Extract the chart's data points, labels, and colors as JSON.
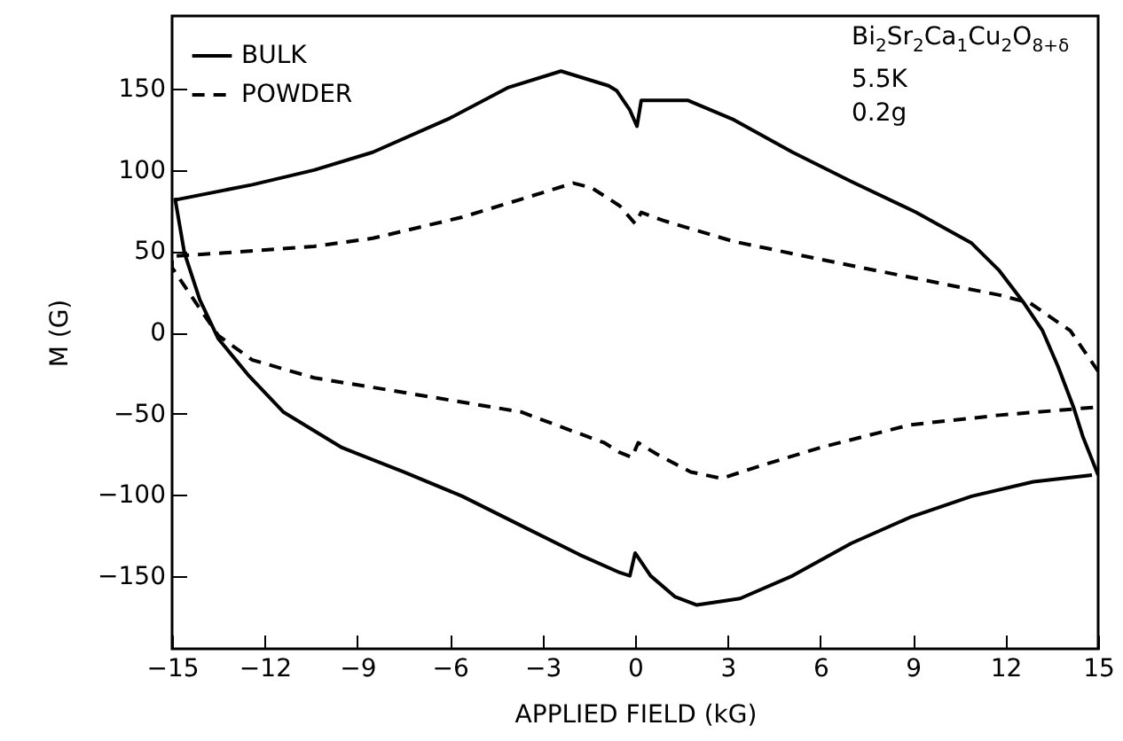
{
  "chart_data": {
    "type": "line",
    "xlabel": "APPLIED FIELD (kG)",
    "ylabel": "M (G)",
    "xlim": [
      -15,
      15
    ],
    "xticks": [
      -15,
      -12,
      -9,
      -6,
      -3,
      0,
      3,
      6,
      9,
      12,
      15
    ],
    "ylim": [
      -195,
      195
    ],
    "yticks": [
      -150,
      -100,
      -50,
      0,
      50,
      100,
      150
    ],
    "grid": false,
    "legend": "top left",
    "marker": "none",
    "annotations": [
      "Bi$_{2}$Sr$_{2}$Ca$_{1}$Cu$_{2}$O$_{8+δ}$",
      "5.5K",
      "0.2g"
    ],
    "series": [
      {
        "name": "BULK",
        "color": "#000000",
        "line_style": "solid",
        "x": [
          15,
          14.5,
          14.2,
          13.7,
          13.2,
          12.6,
          11.8,
          10.9,
          9.1,
          7.0,
          5.1,
          3.2,
          1.7,
          0.2,
          0.06,
          -0.17,
          -0.6,
          -0.86,
          -2.4,
          -4.1,
          -6.0,
          -8.5,
          -10.4,
          -12.4,
          -14.8,
          -14.9,
          -14.6,
          -14.1,
          -13.5,
          -12.5,
          -11.4,
          -9.5,
          -7.5,
          -5.6,
          -3.7,
          -1.8,
          -0.5,
          -0.17,
          0.0,
          0.5,
          1.3,
          2.0,
          3.4,
          5.1,
          7.0,
          8.9,
          10.9,
          12.9,
          14.8
        ],
        "values": [
          -88,
          -64,
          -46,
          -21,
          1,
          18,
          38,
          55,
          74,
          93,
          111,
          131,
          143,
          143,
          127,
          137,
          149,
          152,
          161,
          151,
          132,
          111,
          100,
          91,
          82,
          82,
          49,
          20,
          -4,
          -27,
          -49,
          -71,
          -86,
          -101,
          -119,
          -137,
          -148,
          -150,
          -136,
          -150,
          -163,
          -168,
          -164,
          -150,
          -130,
          -114,
          -101,
          -92,
          -88
        ]
      },
      {
        "name": "POWDER",
        "color": "#000000",
        "line_style": "dashed",
        "x": [
          15,
          14.1,
          12.8,
          11.8,
          8.9,
          6.0,
          3.2,
          0.9,
          0.2,
          0,
          -0.5,
          -1.4,
          -2.0,
          -3.7,
          -5.6,
          -8.5,
          -10.4,
          -13.3,
          -15,
          -15,
          -14.4,
          -13.5,
          -12.4,
          -10.4,
          -7.5,
          -3.7,
          -2.0,
          -1.0,
          -0.5,
          -0.1,
          0.1,
          0.7,
          1.8,
          2.8,
          4.1,
          6.0,
          8.9,
          11.8,
          15
        ],
        "values": [
          -24,
          1,
          18,
          23,
          34,
          45,
          56,
          69,
          74,
          67,
          78,
          89,
          92,
          82,
          71,
          58,
          53,
          49,
          47,
          40,
          23,
          -2,
          -17,
          -28,
          -37,
          -49,
          -61,
          -68,
          -74,
          -77,
          -68,
          -75,
          -86,
          -90,
          -82,
          -71,
          -57,
          -51,
          -46
        ]
      }
    ]
  }
}
